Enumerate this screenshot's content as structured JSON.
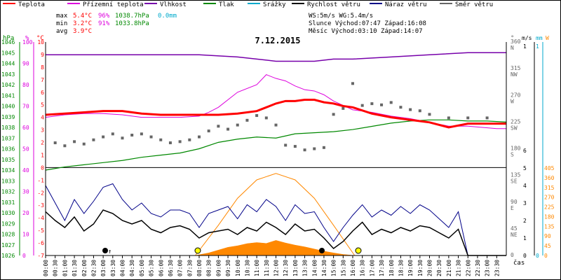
{
  "chart_data": {
    "type": "line",
    "title": "7.12.2015",
    "legend": [
      {
        "key": "temp",
        "label": "Teplota",
        "color": "#ff0000"
      },
      {
        "key": "ground_temp",
        "label": "Přízemní teplota",
        "color": "#dd00dd"
      },
      {
        "key": "humidity",
        "label": "Vlhkost",
        "color": "#7700aa"
      },
      {
        "key": "pressure",
        "label": "Tlak",
        "color": "#008800"
      },
      {
        "key": "rain",
        "label": "Srážky",
        "color": "#00aacc"
      },
      {
        "key": "wind_speed",
        "label": "Rychlost větru",
        "color": "#000000"
      },
      {
        "key": "wind_gust",
        "label": "Náraz větru",
        "color": "#000088"
      },
      {
        "key": "wind_dir",
        "label": "Směr větru",
        "color": "#666666"
      }
    ],
    "stats": [
      {
        "label": "max",
        "temp": "5.4°C",
        "hum": "96%",
        "press": "1038.7hPa",
        "rain": "0.0mm"
      },
      {
        "label": "min",
        "temp": "3.2°C",
        "hum": "91%",
        "press": "1033.8hPa",
        "rain": ""
      },
      {
        "label": "avg",
        "temp": "3.9°C",
        "hum": "",
        "press": "",
        "rain": ""
      }
    ],
    "info": [
      "WS:5m/s       WG:5.4m/s",
      "Slunce Východ:07:47  Západ:16:08",
      "Měsíc  Východ:03:10  Západ:14:07"
    ],
    "axes": {
      "hpa": {
        "label": "hPa",
        "range": [
          1026,
          1046
        ],
        "ticks": [
          "1046",
          "1045",
          "1044",
          "1043",
          "1042",
          "1041",
          "1040",
          "1039",
          "1038",
          "1037",
          "1036",
          "1035",
          "1034",
          "1033",
          "1032",
          "1031",
          "1030",
          "1029",
          "1028",
          "1027",
          "1026"
        ]
      },
      "percent": {
        "label": "%",
        "range": [
          0,
          100
        ],
        "ticks": [
          "100",
          "90",
          "80",
          "70",
          "60",
          "50",
          "40",
          "30",
          "20",
          "10",
          "0"
        ]
      },
      "celsius": {
        "label": "°C",
        "range": [
          -7,
          10
        ],
        "ticks": [
          "10",
          "9",
          "8",
          "7",
          "6",
          "5",
          "4",
          "3",
          "2",
          "1",
          "0",
          "-1",
          "-2",
          "-3",
          "-4",
          "-5",
          "-6",
          "-7"
        ]
      },
      "direction": {
        "label": "°",
        "range": [
          0,
          360
        ],
        "ticks": [
          {
            "v": "360",
            "d": "N"
          },
          {
            "v": "315",
            "d": "NW"
          },
          {
            "v": "270",
            "d": "W"
          },
          {
            "v": "225",
            "d": "SW"
          },
          {
            "v": "180",
            "d": "S"
          },
          {
            "v": "135",
            "d": "SE"
          },
          {
            "v": "90",
            "d": "E"
          },
          {
            "v": "45",
            "d": "NE"
          },
          {
            "v": "0",
            "d": ""
          }
        ]
      },
      "ms": {
        "label": "m/s",
        "ticks": [
          "1",
          "6",
          "5",
          "4",
          "3",
          "2",
          "1",
          "0"
        ]
      },
      "mm": {
        "label": "mm",
        "ticks": [
          "1",
          "0"
        ]
      },
      "watts": {
        "label": "W",
        "range": [
          0,
          405
        ],
        "ticks": [
          "405",
          "360",
          "315",
          "270",
          "225",
          "180",
          "135",
          "90",
          "45",
          "0"
        ]
      },
      "xlabel": "čas",
      "x_ticks": [
        "00:00",
        "00:30",
        "01:00",
        "01:30",
        "02:00",
        "02:30",
        "03:00",
        "03:30",
        "04:00",
        "04:30",
        "05:00",
        "05:30",
        "06:00",
        "06:30",
        "07:00",
        "07:30",
        "08:00",
        "08:30",
        "09:00",
        "09:30",
        "10:00",
        "10:30",
        "11:00",
        "11:30",
        "12:00",
        "12:30",
        "13:00",
        "13:30",
        "14:00",
        "14:30",
        "15:00",
        "15:30",
        "16:00",
        "16:30",
        "17:00",
        "17:30",
        "18:00",
        "18:30",
        "19:00",
        "19:30",
        "20:00",
        "20:30",
        "21:00",
        "21:30",
        "22:00",
        "22:30",
        "23:00",
        "23:30"
      ]
    },
    "series": {
      "temp": {
        "x": [
          0,
          2,
          3,
          4,
          5,
          6,
          7,
          8,
          9,
          10,
          11,
          11.5,
          12,
          12.5,
          13,
          13.5,
          14,
          14.5,
          15,
          15.5,
          16,
          17,
          18,
          19,
          20,
          21,
          22,
          23.5,
          24
        ],
        "y": [
          4.2,
          4.4,
          4.5,
          4.5,
          4.3,
          4.2,
          4.2,
          4.2,
          4.2,
          4.3,
          4.5,
          4.8,
          5.1,
          5.3,
          5.3,
          5.4,
          5.4,
          5.2,
          5.1,
          4.9,
          4.8,
          4.3,
          4.0,
          3.8,
          3.6,
          3.2,
          3.5,
          3.5,
          3.5
        ]
      },
      "ground_temp": {
        "x": [
          0,
          1,
          2,
          3,
          4,
          5,
          6,
          7,
          8,
          8.5,
          9,
          10,
          11,
          11.5,
          12,
          12.5,
          13,
          13.5,
          14,
          14.5,
          15,
          16,
          17,
          18,
          19,
          20,
          21,
          22,
          23.5,
          24
        ],
        "y": [
          4.0,
          4.2,
          4.3,
          4.3,
          4.2,
          4.0,
          4.0,
          4.0,
          4.1,
          4.4,
          4.8,
          6.0,
          6.6,
          7.4,
          7.1,
          6.9,
          6.5,
          6.2,
          6.1,
          5.8,
          5.3,
          4.6,
          4.4,
          4.1,
          3.9,
          3.6,
          3.3,
          3.3,
          3.1,
          3.1
        ]
      },
      "humidity": {
        "x": [
          0,
          2,
          4,
          6,
          8,
          10,
          11,
          12,
          13,
          14,
          15,
          16,
          18,
          20,
          22,
          24
        ],
        "y": [
          94,
          94,
          94,
          94,
          94,
          93,
          92,
          91,
          91,
          91,
          92,
          92,
          93,
          94,
          95,
          95
        ]
      },
      "pressure": {
        "x": [
          0,
          1,
          2,
          3,
          4,
          5,
          6,
          7,
          8,
          9,
          10,
          11,
          12,
          13,
          14,
          15,
          16,
          17,
          18,
          19,
          20,
          21,
          22,
          23,
          24
        ],
        "y": [
          1034.0,
          1034.3,
          1034.5,
          1034.7,
          1034.9,
          1035.2,
          1035.4,
          1035.6,
          1036.0,
          1036.6,
          1036.9,
          1037.1,
          1037.0,
          1037.4,
          1037.5,
          1037.6,
          1037.8,
          1038.1,
          1038.4,
          1038.6,
          1038.7,
          1038.7,
          1038.6,
          1038.6,
          1038.5
        ]
      },
      "wind_speed": {
        "x": [
          0,
          0.5,
          1,
          1.5,
          2,
          2.5,
          3,
          3.5,
          4,
          4.5,
          5,
          5.5,
          6,
          6.5,
          7,
          7.5,
          8,
          8.5,
          9,
          9.5,
          10,
          10.5,
          11,
          11.5,
          12,
          12.5,
          13,
          13.5,
          14,
          14.5,
          15,
          15.5,
          16,
          16.5,
          17,
          17.5,
          18,
          18.5,
          19,
          19.5,
          20,
          20.5,
          21,
          21.5,
          22,
          23,
          24
        ],
        "y": [
          2.5,
          2.0,
          1.6,
          2.2,
          1.4,
          1.8,
          2.6,
          2.4,
          2.0,
          1.8,
          2.0,
          1.5,
          1.3,
          1.6,
          1.7,
          1.5,
          1.0,
          1.3,
          1.4,
          1.5,
          1.2,
          1.6,
          1.4,
          1.9,
          1.6,
          1.2,
          1.8,
          1.4,
          1.5,
          1.0,
          0.4,
          0.8,
          1.4,
          1.9,
          1.2,
          1.5,
          1.3,
          1.6,
          1.4,
          1.7,
          1.6,
          1.3,
          1.0,
          1.5,
          0.0,
          0.0,
          0.0
        ]
      },
      "wind_gust": {
        "x": [
          0,
          0.5,
          1,
          1.5,
          2,
          2.5,
          3,
          3.5,
          4,
          4.5,
          5,
          5.5,
          6,
          6.5,
          7,
          7.5,
          8,
          8.5,
          9,
          9.5,
          10,
          10.5,
          11,
          11.5,
          12,
          12.5,
          13,
          13.5,
          14,
          14.5,
          15,
          15.5,
          16,
          16.5,
          17,
          17.5,
          18,
          18.5,
          19,
          19.5,
          20,
          20.5,
          21,
          21.5,
          22,
          23,
          24
        ],
        "y": [
          4.0,
          3.0,
          2.0,
          3.2,
          2.4,
          3.1,
          3.9,
          4.1,
          3.2,
          2.6,
          3.0,
          2.4,
          2.2,
          2.6,
          2.6,
          2.4,
          1.6,
          2.4,
          2.6,
          2.8,
          2.1,
          2.9,
          2.5,
          3.2,
          2.8,
          2.0,
          2.9,
          2.4,
          2.5,
          1.6,
          0.8,
          1.6,
          2.3,
          2.9,
          2.2,
          2.6,
          2.3,
          2.8,
          2.4,
          2.9,
          2.6,
          2.1,
          1.6,
          2.5,
          0.0,
          0.0,
          0.0
        ]
      },
      "wind_dir": {
        "x": [
          0.5,
          1,
          1.5,
          2,
          2.5,
          3,
          3.5,
          4,
          4.5,
          5,
          5.5,
          6,
          6.5,
          7,
          7.5,
          8,
          8.5,
          9,
          9.5,
          10,
          10.5,
          11,
          11.5,
          12,
          12.5,
          13,
          13.5,
          14,
          14.5,
          15,
          15.5,
          16,
          16.5,
          17,
          17.5,
          18,
          18.5,
          19,
          19.5,
          20,
          21,
          22,
          23
        ],
        "y": [
          190,
          185,
          192,
          188,
          195,
          200,
          205,
          198,
          203,
          205,
          200,
          195,
          190,
          192,
          195,
          200,
          210,
          218,
          213,
          220,
          228,
          236,
          232,
          220,
          186,
          184,
          178,
          180,
          182,
          238,
          248,
          290,
          253,
          256,
          254,
          258,
          250,
          246,
          244,
          238,
          232,
          232,
          232
        ]
      },
      "solar": {
        "x": [
          7.8,
          8.5,
          9,
          9.5,
          10,
          10.5,
          11,
          11.5,
          12,
          12.5,
          13,
          13.5,
          14,
          14.5,
          15,
          15.5,
          16.1
        ],
        "y": [
          0,
          12,
          25,
          38,
          45,
          55,
          60,
          56,
          70,
          58,
          48,
          40,
          30,
          20,
          12,
          5,
          0
        ]
      },
      "solar_theoretical": {
        "x": [
          7.8,
          9,
          10,
          11,
          12,
          13,
          14,
          15,
          16.1
        ],
        "y": [
          0,
          140,
          265,
          350,
          380,
          350,
          265,
          140,
          0
        ]
      }
    }
  }
}
